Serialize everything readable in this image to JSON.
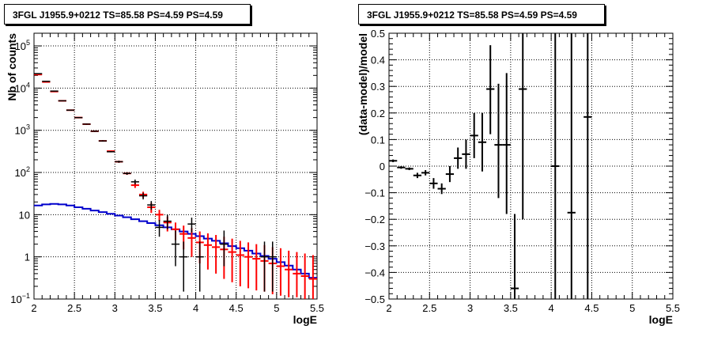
{
  "chart_data": [
    {
      "type": "line",
      "title": "3FGL J1955.9+0212 TS=85.58 PS=4.59 PS=4.59",
      "xlabel": "logE",
      "ylabel": "Nb of counts",
      "xlim": [
        2,
        5.5
      ],
      "ylim": [
        0.1,
        200000
      ],
      "yscale": "log",
      "grid": true,
      "x_ticks": [
        "2",
        "2.5",
        "3",
        "3.5",
        "4",
        "4.5",
        "5",
        "5.5"
      ],
      "y_ticks": [
        {
          "value": 0.1,
          "label": "10",
          "sup": "−1"
        },
        {
          "value": 1,
          "label": "1",
          "sup": ""
        },
        {
          "value": 10,
          "label": "10",
          "sup": ""
        },
        {
          "value": 100,
          "label": "10",
          "sup": "2"
        },
        {
          "value": 1000,
          "label": "10",
          "sup": "3"
        },
        {
          "value": 10000,
          "label": "10",
          "sup": "4"
        },
        {
          "value": 100000,
          "label": "10",
          "sup": "5"
        }
      ],
      "bin_width": 0.1,
      "data_points": {
        "color": "#000000",
        "x": [
          2.05,
          2.15,
          2.25,
          2.35,
          2.45,
          2.55,
          2.65,
          2.75,
          2.85,
          2.95,
          3.05,
          3.15,
          3.25,
          3.35,
          3.45,
          3.55,
          3.65,
          3.75,
          3.85,
          3.95,
          4.05,
          4.35,
          4.85,
          4.95
        ],
        "y": [
          22000,
          14500,
          8500,
          5000,
          3000,
          2000,
          1400,
          950,
          560,
          310,
          180,
          95,
          60,
          28,
          17,
          5,
          7,
          2,
          1,
          6,
          1,
          2,
          1,
          1
        ],
        "lo": [
          21800,
          14300,
          8300,
          4900,
          2950,
          1950,
          1360,
          920,
          540,
          300,
          170,
          88,
          52,
          23,
          13,
          3,
          4.5,
          0.6,
          0.15,
          3.8,
          0.15,
          0.6,
          0.15,
          0.15
        ],
        "hi": [
          22200,
          14700,
          8700,
          5100,
          3050,
          2050,
          1440,
          980,
          580,
          320,
          190,
          102,
          68,
          33,
          21,
          7.5,
          10,
          4.2,
          2.3,
          8.5,
          2.3,
          4.2,
          2.3,
          2.3
        ]
      },
      "model_points": {
        "color": "#ff0000",
        "x": [
          2.05,
          2.15,
          2.25,
          2.35,
          2.45,
          2.55,
          2.65,
          2.75,
          2.85,
          2.95,
          3.05,
          3.15,
          3.25,
          3.35,
          3.45,
          3.55,
          3.65,
          3.75,
          3.85,
          3.95,
          4.05,
          4.15,
          4.25,
          4.35,
          4.45,
          4.55,
          4.65,
          4.75,
          4.85,
          4.95,
          5.05,
          5.15,
          5.25,
          5.35,
          5.45
        ],
        "y": [
          21000,
          14000,
          8300,
          5000,
          3000,
          2000,
          1400,
          950,
          560,
          320,
          180,
          95,
          50,
          30,
          15,
          10,
          6.5,
          4.5,
          3.5,
          2.8,
          2.2,
          1.9,
          1.7,
          1.5,
          1.3,
          1.1,
          1.0,
          0.9,
          0.8,
          0.7,
          0.6,
          0.5,
          0.4,
          0.35,
          0.3
        ],
        "lo": [
          20800,
          13800,
          8100,
          4900,
          2950,
          1950,
          1360,
          920,
          540,
          310,
          170,
          88,
          43,
          25,
          11,
          7,
          4,
          2.5,
          1.5,
          1,
          0.7,
          0.5,
          0.4,
          0.3,
          0.25,
          0.2,
          0.18,
          0.16,
          0.15,
          0.13,
          0.12,
          0.11,
          0.11,
          0.1,
          0.1
        ],
        "hi": [
          21200,
          14200,
          8500,
          5100,
          3050,
          2050,
          1440,
          980,
          580,
          330,
          190,
          102,
          57,
          35,
          19,
          13,
          9,
          6.5,
          5.5,
          4.8,
          4,
          3.6,
          3.3,
          3,
          2.7,
          2.4,
          2.2,
          2,
          1.9,
          1.7,
          1.6,
          1.4,
          1.3,
          1.2,
          1.1
        ]
      },
      "component_curve": {
        "color": "#0000cc",
        "x": [
          2.0,
          2.1,
          2.2,
          2.3,
          2.4,
          2.5,
          2.6,
          2.7,
          2.8,
          2.9,
          3.0,
          3.1,
          3.2,
          3.3,
          3.4,
          3.5,
          3.6,
          3.7,
          3.8,
          3.9,
          4.0,
          4.1,
          4.2,
          4.3,
          4.4,
          4.5,
          4.6,
          4.7,
          4.8,
          4.9,
          5.0,
          5.1,
          5.2,
          5.3,
          5.4
        ],
        "y": [
          16.5,
          17.5,
          18,
          17.5,
          16.5,
          15,
          13.8,
          12.5,
          11.5,
          10.5,
          9.5,
          8.7,
          7.8,
          7,
          6.3,
          5.6,
          5,
          4.5,
          4,
          3.5,
          3.1,
          2.7,
          2.4,
          2.1,
          1.8,
          1.6,
          1.4,
          1.2,
          1.05,
          0.9,
          0.75,
          0.62,
          0.5,
          0.4,
          0.32
        ]
      }
    },
    {
      "type": "scatter",
      "title": "3FGL J1955.9+0212 TS=85.58 PS=4.59 PS=4.59",
      "xlabel": "logE",
      "ylabel": "(data-model)/model",
      "xlim": [
        2,
        5.5
      ],
      "ylim": [
        -0.5,
        0.5
      ],
      "grid": true,
      "x_ticks": [
        "2",
        "2.5",
        "3",
        "3.5",
        "4",
        "4.5",
        "5",
        "5.5"
      ],
      "y_ticks": [
        "−0.5",
        "−0.4",
        "−0.3",
        "−0.2",
        "−0.1",
        "0",
        "0.1",
        "0.2",
        "0.3",
        "0.4",
        "0.5"
      ],
      "bin_width": 0.1,
      "residuals": {
        "color": "#000000",
        "x": [
          2.05,
          2.15,
          2.25,
          2.35,
          2.45,
          2.55,
          2.65,
          2.75,
          2.85,
          2.95,
          3.05,
          3.15,
          3.25,
          3.35,
          3.45,
          3.55,
          3.65,
          4.05,
          4.25,
          4.45
        ],
        "y": [
          0.02,
          -0.005,
          -0.01,
          -0.035,
          -0.025,
          -0.065,
          -0.085,
          -0.03,
          0.03,
          0.045,
          0.115,
          0.09,
          0.29,
          0.08,
          0.08,
          -0.46,
          0.29,
          0.0,
          -0.175,
          0.185
        ],
        "lo": [
          0.015,
          -0.01,
          -0.015,
          -0.045,
          -0.035,
          -0.085,
          -0.105,
          -0.06,
          -0.01,
          -0.01,
          0.03,
          -0.02,
          0.12,
          -0.12,
          -0.18,
          -0.5,
          -0.2,
          -0.5,
          -0.5,
          -0.5
        ],
        "hi": [
          0.025,
          0.0,
          -0.005,
          -0.025,
          -0.015,
          -0.045,
          -0.065,
          0.0,
          0.07,
          0.1,
          0.2,
          0.2,
          0.455,
          0.31,
          0.35,
          -0.18,
          0.5,
          0.5,
          0.5,
          0.5
        ]
      }
    }
  ]
}
